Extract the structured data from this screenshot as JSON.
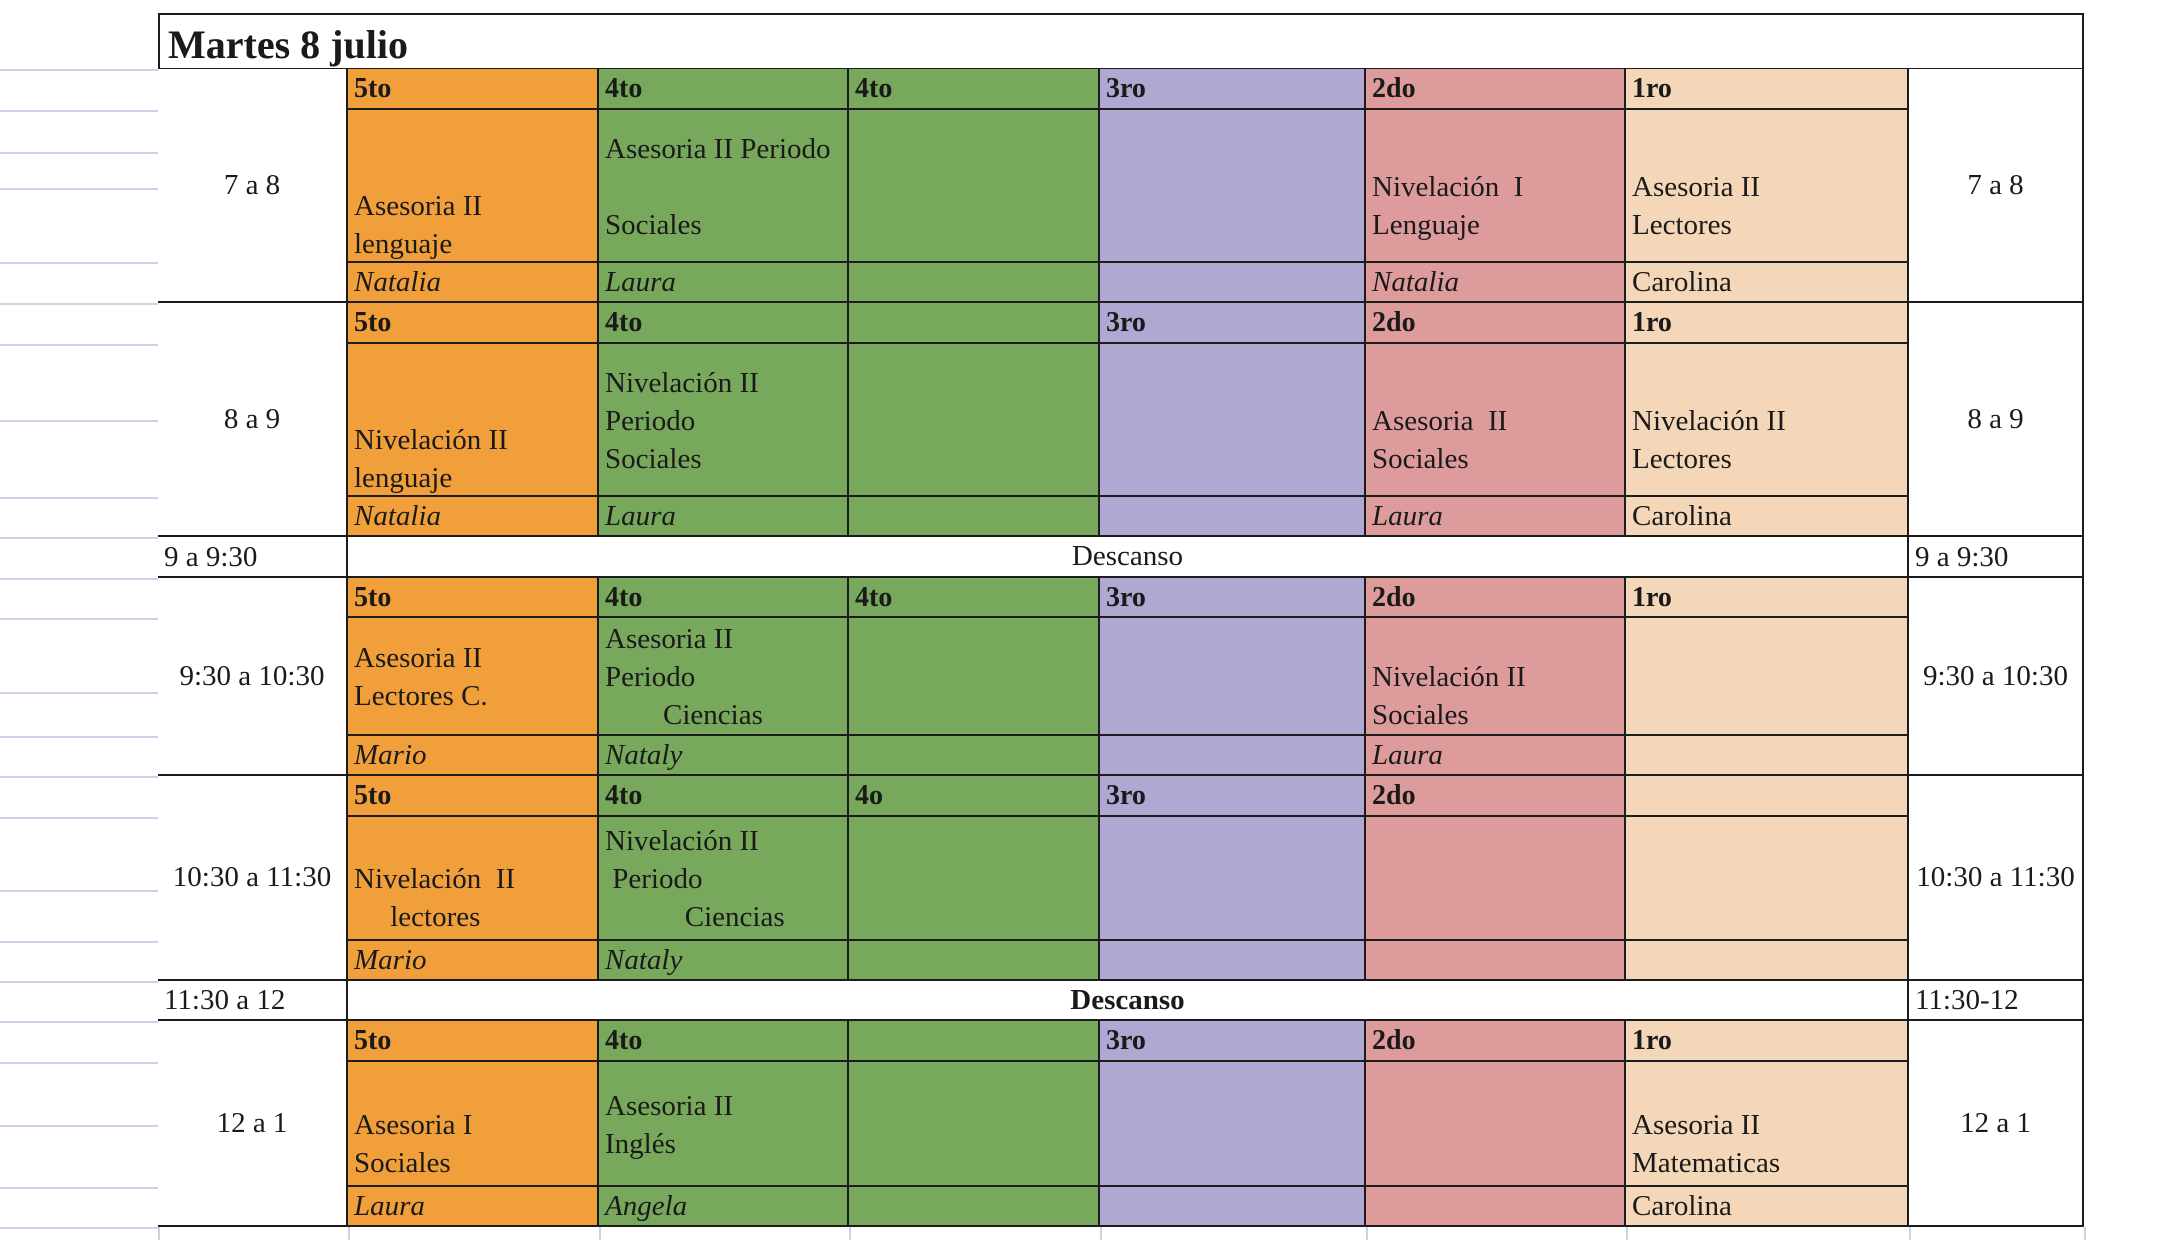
{
  "title": "Martes 8 julio",
  "colors": {
    "5to": "#f09f3a",
    "4to": "#78a85c",
    "3ro": "#b0a7d3",
    "2do": "#de9b9b",
    "1ro": "#f4d6b8"
  },
  "blocks": [
    {
      "time": "7 a 8",
      "cells": [
        {
          "grade": "5to",
          "lines": [
            "",
            "",
            "Asesoria II",
            "lenguaje"
          ],
          "teacher": "Natalia",
          "italic": true
        },
        {
          "grade": "4to",
          "lines": [
            "Asesoria II Periodo",
            "",
            "Sociales"
          ],
          "teacher": "Laura",
          "italic": true
        },
        {
          "grade": "4to",
          "lines": [],
          "teacher": "",
          "italic": true
        },
        {
          "grade": "3ro",
          "lines": [],
          "teacher": "",
          "italic": true
        },
        {
          "grade": "2do",
          "lines": [
            "",
            "Nivelación  I",
            "Lenguaje"
          ],
          "teacher": "Natalia",
          "italic": true
        },
        {
          "grade": "1ro",
          "lines": [
            "",
            "Asesoria II",
            "Lectores"
          ],
          "teacher": "Carolina",
          "italic": false
        }
      ]
    },
    {
      "time": "8 a 9",
      "cells": [
        {
          "grade": "5to",
          "lines": [
            "",
            "",
            "Nivelación II",
            "lenguaje"
          ],
          "teacher": "Natalia",
          "italic": true
        },
        {
          "grade": "4to",
          "lines": [
            "Nivelación II",
            "Periodo",
            "Sociales"
          ],
          "teacher": "Laura",
          "italic": true
        },
        {
          "grade": "",
          "lines": [],
          "teacher": "",
          "italic": true
        },
        {
          "grade": "3ro",
          "lines": [],
          "teacher": "",
          "italic": true
        },
        {
          "grade": "2do",
          "lines": [
            "",
            "Asesoria  II",
            "Sociales"
          ],
          "teacher": "Laura",
          "italic": true
        },
        {
          "grade": "1ro",
          "lines": [
            "",
            "Nivelación II",
            "Lectores"
          ],
          "teacher": "Carolina",
          "italic": false
        }
      ]
    },
    {
      "break": true,
      "left": "9 a 9:30",
      "center": "Descanso",
      "right": "9 a 9:30",
      "bold": false
    },
    {
      "time": "9:30 a 10:30",
      "cells": [
        {
          "grade": "5to",
          "lines": [
            "Asesoria II",
            "Lectores C."
          ],
          "teacher": "Mario",
          "italic": true
        },
        {
          "grade": "4to",
          "lines": [
            "Asesoria II",
            "Periodo",
            "        Ciencias"
          ],
          "teacher": "Nataly",
          "italic": true
        },
        {
          "grade": "4to",
          "lines": [],
          "teacher": "",
          "italic": true
        },
        {
          "grade": "3ro",
          "lines": [],
          "teacher": "",
          "italic": true
        },
        {
          "grade": "2do",
          "lines": [
            "",
            "Nivelación II",
            "Sociales"
          ],
          "teacher": "Laura",
          "italic": true
        },
        {
          "grade": "1ro",
          "lines": [],
          "teacher": "",
          "italic": false
        }
      ]
    },
    {
      "time": "10:30 a 11:30",
      "cells": [
        {
          "grade": "5to",
          "lines": [
            "",
            "Nivelación  II",
            "     lectores"
          ],
          "teacher": "Mario",
          "italic": true
        },
        {
          "grade": "4to",
          "lines": [
            "Nivelación II",
            " Periodo",
            "           Ciencias"
          ],
          "teacher": "Nataly",
          "italic": true
        },
        {
          "grade": "4o",
          "lines": [],
          "teacher": "",
          "italic": true
        },
        {
          "grade": "3ro",
          "lines": [],
          "teacher": "",
          "italic": true
        },
        {
          "grade": "2do",
          "lines": [],
          "teacher": "",
          "italic": true
        },
        {
          "grade": "",
          "lines": [],
          "teacher": "",
          "italic": false
        }
      ]
    },
    {
      "break": true,
      "left": "11:30 a 12",
      "center": "Descanso",
      "right": "11:30-12",
      "bold": true
    },
    {
      "time": "12 a 1",
      "cells": [
        {
          "grade": "5to",
          "lines": [
            "",
            "Asesoria I",
            "Sociales"
          ],
          "teacher": "Laura",
          "italic": true
        },
        {
          "grade": "4to",
          "lines": [
            "Asesoria II",
            "Inglés"
          ],
          "teacher": "Angela",
          "italic": true
        },
        {
          "grade": "",
          "lines": [],
          "teacher": "",
          "italic": true
        },
        {
          "grade": "3ro",
          "lines": [],
          "teacher": "",
          "italic": true
        },
        {
          "grade": "2do",
          "lines": [],
          "teacher": "",
          "italic": true
        },
        {
          "grade": "1ro",
          "lines": [
            "",
            "Asesoria II",
            "Matematicas"
          ],
          "teacher": "Carolina",
          "italic": false
        }
      ]
    }
  ]
}
